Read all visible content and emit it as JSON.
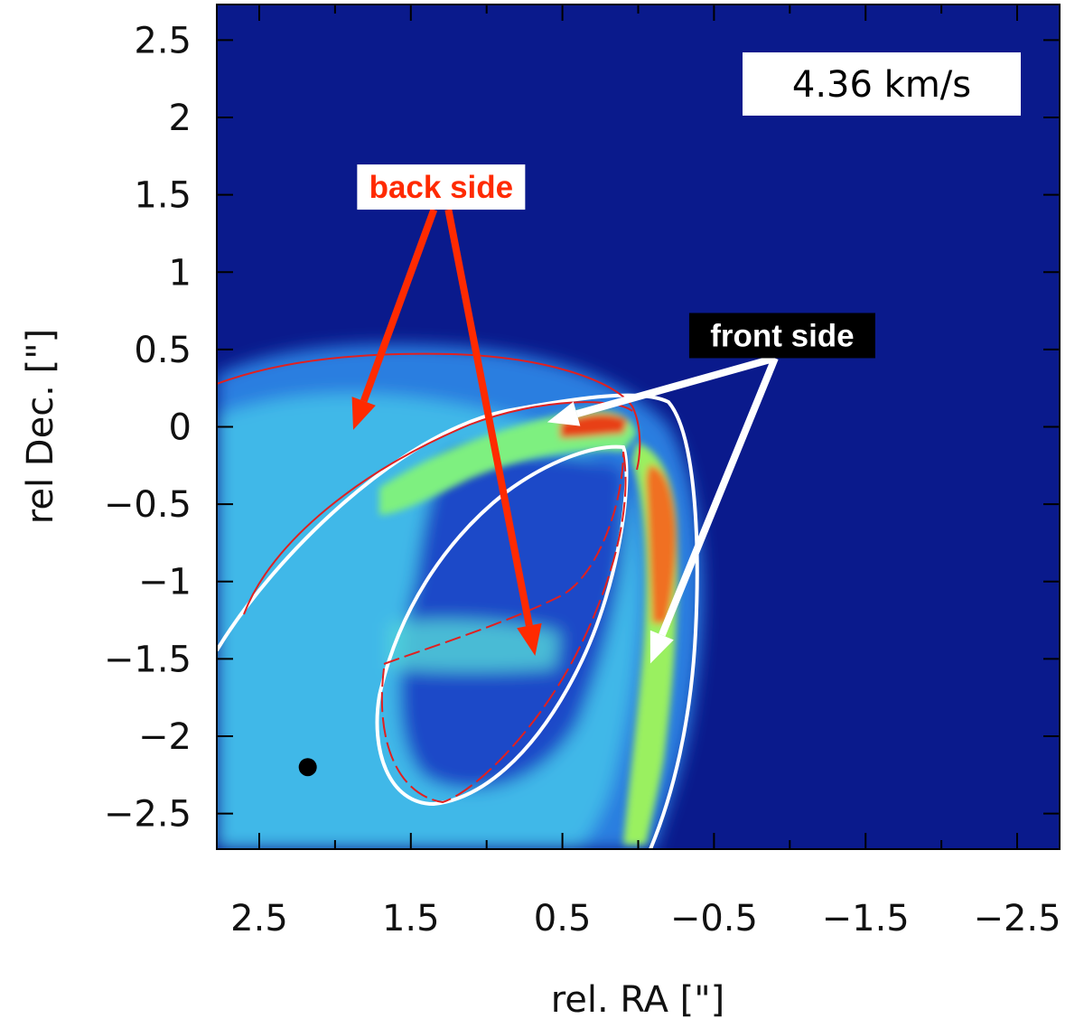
{
  "chart_data": {
    "type": "heatmap",
    "title": "",
    "velocity_label": "4.36 km/s",
    "xlabel": "rel. RA [\"]",
    "ylabel": "rel Dec. [\"]",
    "xlim": [
      2.78,
      -2.78
    ],
    "ylim": [
      -2.73,
      2.73
    ],
    "x_ticks": [
      2.5,
      1.5,
      0.5,
      -0.5,
      -1.5,
      -2.5
    ],
    "x_tick_labels": [
      "2.5",
      "1.5",
      "0.5",
      "−0.5",
      "−1.5",
      "−2.5"
    ],
    "y_ticks": [
      2.5,
      2,
      1.5,
      1,
      0.5,
      0,
      -0.5,
      -1,
      -1.5,
      -2,
      -2.5
    ],
    "y_tick_labels": [
      "2.5",
      "2",
      "1.5",
      "1",
      "0.5",
      "0",
      "−0.5",
      "−1",
      "−1.5",
      "−2",
      "−2.5"
    ],
    "x_minor_step": 0.5,
    "y_minor_step": 0.5,
    "colormap": [
      "#0a1a8c",
      "#1f4fd6",
      "#33b0e6",
      "#4fe6c8",
      "#7ef080",
      "#d6f040",
      "#f0a020",
      "#e23010"
    ],
    "background_color": "#0a1a8c",
    "annotations": [
      {
        "text": "back side",
        "text_color": "#ff2a00",
        "box_color": "#ffffff",
        "arrow_color": "#ff2a00",
        "anchor": [
          1.3,
          1.55
        ],
        "arrow_tips": [
          [
            1.88,
            -0.02
          ],
          [
            0.68,
            -1.48
          ]
        ]
      },
      {
        "text": "front side",
        "text_color": "#ffffff",
        "box_color": "#000000",
        "arrow_color": "#ffffff",
        "anchor": [
          -0.95,
          0.59
        ],
        "arrow_tips": [
          [
            0.6,
            0.03
          ],
          [
            -0.08,
            -1.53
          ]
        ]
      }
    ],
    "markers": [
      {
        "type": "beam",
        "x": 2.18,
        "y": -2.2,
        "color": "#000000"
      }
    ]
  }
}
